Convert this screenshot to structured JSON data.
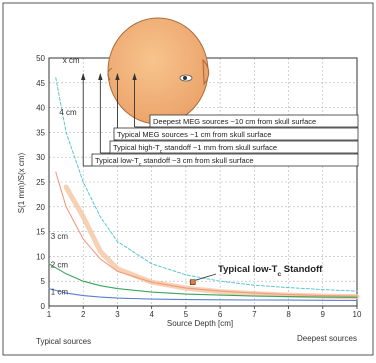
{
  "chart_data": {
    "type": "line",
    "xlabel": "Source Depth [cm]",
    "ylabel": "S(1 mm)/S(x cm)",
    "xlim": [
      1,
      10
    ],
    "ylim": [
      0,
      50
    ],
    "x_ticks": [
      "1",
      "2",
      "3",
      "4",
      "5",
      "6",
      "7",
      "8",
      "9",
      "10"
    ],
    "y_ticks": [
      "0",
      "5",
      "10",
      "15",
      "20",
      "25",
      "30",
      "35",
      "40",
      "45",
      "50"
    ],
    "grid": true,
    "series": [
      {
        "name": "x cm",
        "color": "#f5c9a6",
        "style": "thick",
        "x": [
          1.5,
          2,
          2.5,
          3,
          4,
          5,
          6,
          7,
          8,
          9,
          10
        ],
        "y": [
          24,
          18,
          11,
          7.5,
          4.8,
          3.6,
          2.9,
          2.5,
          2.2,
          2.0,
          1.9
        ]
      },
      {
        "name": "4 cm",
        "color": "#58c7d3",
        "style": "dashed",
        "x": [
          1.2,
          1.5,
          2,
          2.5,
          3,
          4,
          5,
          6,
          7,
          8,
          9,
          10
        ],
        "y": [
          46,
          35,
          25,
          18,
          13,
          8.5,
          6.3,
          5.0,
          4.2,
          3.7,
          3.3,
          3.0
        ]
      },
      {
        "name": "3 cm",
        "color": "#f39a80",
        "style": "solid",
        "x": [
          1.2,
          1.5,
          2,
          2.5,
          3,
          4,
          5,
          6,
          7,
          8,
          9,
          10
        ],
        "y": [
          27,
          20,
          13.5,
          9.5,
          7,
          4.8,
          3.6,
          3.0,
          2.6,
          2.3,
          2.1,
          2.0
        ]
      },
      {
        "name": "2 cm",
        "color": "#3aa45c",
        "style": "solid",
        "x": [
          1,
          1.5,
          2,
          2.5,
          3,
          4,
          5,
          6,
          7,
          8,
          9,
          10
        ],
        "y": [
          8.5,
          6.5,
          5,
          4.1,
          3.5,
          2.8,
          2.4,
          2.2,
          2.0,
          1.9,
          1.8,
          1.75
        ]
      },
      {
        "name": "1 cm",
        "color": "#5a7fcf",
        "style": "solid",
        "x": [
          1,
          1.5,
          2,
          2.5,
          3,
          4,
          5,
          6,
          7,
          8,
          9,
          10
        ],
        "y": [
          3.5,
          2.6,
          2.1,
          1.8,
          1.6,
          1.4,
          1.3,
          1.25,
          1.2,
          1.18,
          1.15,
          1.12
        ]
      }
    ],
    "series_labels": [
      {
        "text": "x cm",
        "x": 1.4,
        "y": 49
      },
      {
        "text": "4 cm",
        "x": 1.3,
        "y": 38.5
      },
      {
        "text": "3 cm",
        "x": 1.05,
        "y": 13.5
      },
      {
        "text": "2 cm",
        "x": 1.05,
        "y": 7.8
      },
      {
        "text": "1 cm",
        "x": 1.05,
        "y": 2.3
      }
    ],
    "marker": {
      "x": 5.2,
      "y": 4.8,
      "color": "#e87a3c",
      "label": "Typical low-T",
      "sub": "c",
      "label_end": " Standoff"
    },
    "annotations": [
      {
        "pre": "Deepest MEG sources ~10 cm from skull surface",
        "sub": "",
        "post": "",
        "x": 3.5
      },
      {
        "pre": "Typical MEG sources ~1 cm from skull surface",
        "sub": "",
        "post": "",
        "x": 3.0
      },
      {
        "pre": "Typical high-T",
        "sub": "c",
        "post": " standoff ~1 mm from skull surface",
        "x": 2.5
      },
      {
        "pre": "Typical low-T",
        "sub": "c",
        "post": " standoff ~3 cm from skull surface",
        "x": 2.0
      }
    ],
    "bottom_labels": {
      "left": "Typical sources",
      "right": "Deepest sources"
    }
  }
}
